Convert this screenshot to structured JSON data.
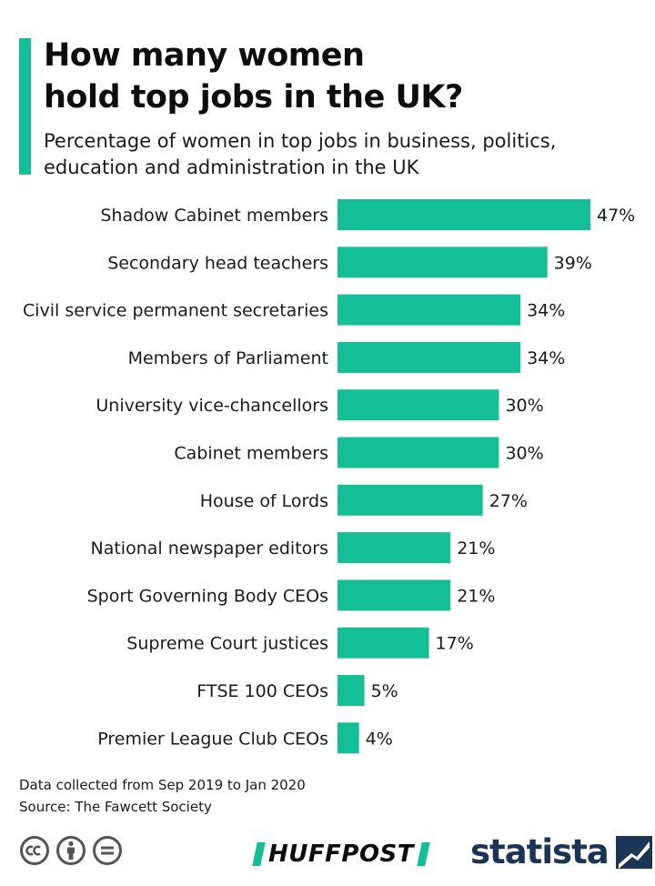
{
  "header": {
    "title_lines": [
      "How many women",
      "hold top jobs in the UK?"
    ],
    "subtitle_lines": [
      "Percentage of women in top jobs in business, politics,",
      "education and administration in the UK"
    ]
  },
  "colors": {
    "accent": "#14bf95",
    "bar": "#14bf95",
    "statista_navy": "#1b3557"
  },
  "chart_data": {
    "type": "bar",
    "orientation": "horizontal",
    "categories": [
      "Shadow Cabinet members",
      "Secondary head teachers",
      "Civil service permanent secretaries",
      "Members of Parliament",
      "University vice-chancellors",
      "Cabinet members",
      "House of Lords",
      "National newspaper editors",
      "Sport Governing Body CEOs",
      "Supreme Court justices",
      "FTSE 100 CEOs",
      "Premier League Club CEOs"
    ],
    "values": [
      47,
      39,
      34,
      34,
      30,
      30,
      27,
      21,
      21,
      17,
      5,
      4
    ],
    "value_labels": [
      "47%",
      "39%",
      "34%",
      "34%",
      "30%",
      "30%",
      "27%",
      "21%",
      "21%",
      "17%",
      "5%",
      "4%"
    ],
    "title": "How many women hold top jobs in the UK?",
    "xlabel": "",
    "ylabel": "",
    "xlim": [
      0,
      47
    ],
    "grid": false,
    "legend": "none"
  },
  "footer": {
    "notes": [
      "Data collected from Sep 2019  to Jan 2020",
      "Source: The Fawcett Society"
    ],
    "license_icons": [
      "cc-icon",
      "attribution-icon",
      "no-derivatives-icon"
    ],
    "brands": {
      "huffpost": "HUFFPOST",
      "statista": "statista"
    }
  }
}
